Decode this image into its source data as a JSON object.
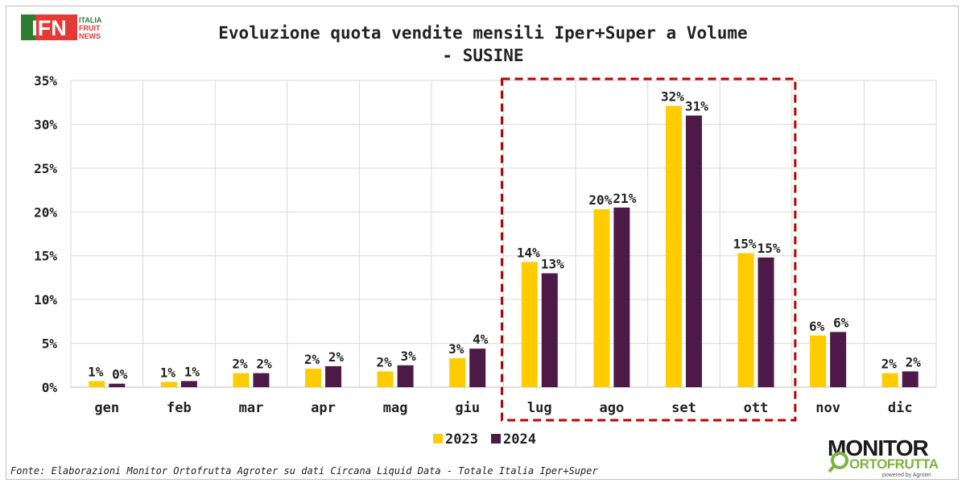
{
  "logo_left": {
    "mark": "IFN",
    "line1": "ITALIA",
    "line2": "FRUIT",
    "line3": "NEWS"
  },
  "logo_right": {
    "line1": "MONITOR",
    "line2": "ORTOFRUTTA",
    "line3": "powered by Agroter"
  },
  "chart_data": {
    "type": "bar",
    "title_line1": "Evoluzione quota vendite mensili Iper+Super a Volume",
    "title_line2": "- SUSINE",
    "categories": [
      "gen",
      "feb",
      "mar",
      "apr",
      "mag",
      "giu",
      "lug",
      "ago",
      "set",
      "ott",
      "nov",
      "dic"
    ],
    "series": [
      {
        "name": "2023",
        "color": "#ffcc00",
        "values": [
          0.7,
          0.6,
          1.6,
          2.1,
          1.8,
          3.3,
          14.3,
          20.3,
          32.1,
          15.3,
          5.9,
          1.6
        ],
        "labels": [
          "1%",
          "1%",
          "2%",
          "2%",
          "2%",
          "3%",
          "14%",
          "20%",
          "32%",
          "15%",
          "6%",
          "2%"
        ]
      },
      {
        "name": "2024",
        "color": "#4d1a48",
        "values": [
          0.4,
          0.7,
          1.6,
          2.4,
          2.5,
          4.4,
          13.0,
          20.5,
          31.0,
          14.8,
          6.3,
          1.8
        ],
        "labels": [
          "0%",
          "1%",
          "2%",
          "2%",
          "3%",
          "4%",
          "13%",
          "21%",
          "31%",
          "15%",
          "6%",
          "2%"
        ]
      }
    ],
    "ylim": [
      0,
      35
    ],
    "yticks": [
      0,
      5,
      10,
      15,
      20,
      25,
      30,
      35
    ],
    "ytick_labels": [
      "0%",
      "5%",
      "10%",
      "15%",
      "20%",
      "25%",
      "30%",
      "35%"
    ],
    "grid": true,
    "legend_position": "bottom-center",
    "highlight": {
      "from": "lug",
      "to": "ott",
      "color": "#c00000",
      "style": "dashed"
    },
    "source": "Fonte: Elaborazioni Monitor Ortofrutta Agroter su dati Circana Liquid Data - Totale Italia Iper+Super"
  }
}
